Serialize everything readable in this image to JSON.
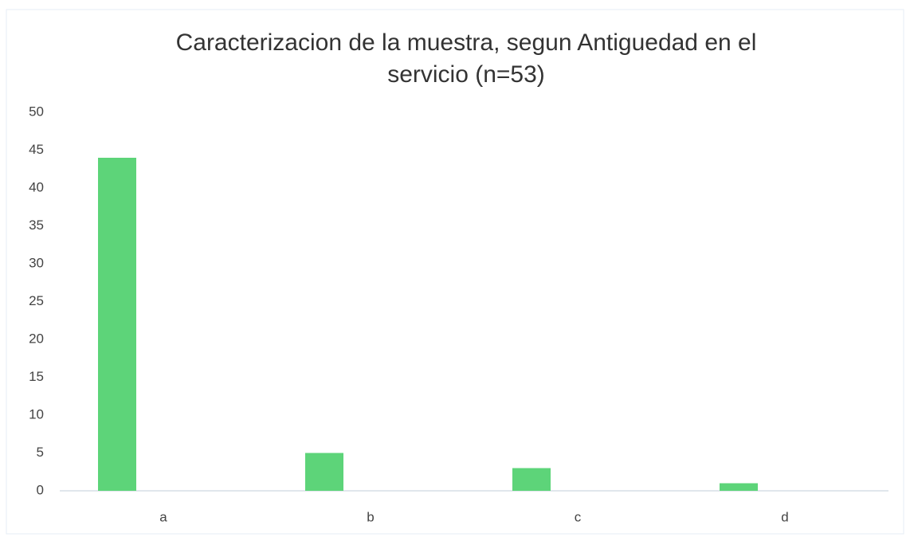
{
  "chart_data": {
    "type": "bar",
    "title": "Caracterizacion de la muestra, segun Antiguedad en el servicio (n=53)",
    "categories": [
      "a",
      "b",
      "c",
      "d"
    ],
    "values": [
      44,
      5,
      3,
      1
    ],
    "color": "#5dd479",
    "ylim": [
      0,
      50
    ],
    "yticks": [
      0,
      5,
      10,
      15,
      20,
      25,
      30,
      35,
      40,
      45,
      50
    ],
    "grid": false
  }
}
